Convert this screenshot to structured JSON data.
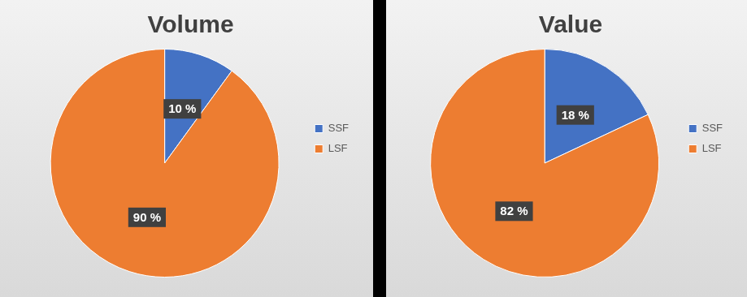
{
  "chart_data": [
    {
      "type": "pie",
      "title": "Volume",
      "categories": [
        "SSF",
        "LSF"
      ],
      "values": [
        10,
        90
      ],
      "value_labels": [
        "10 %",
        "90 %"
      ],
      "colors": [
        "#4472c4",
        "#ed7d31"
      ],
      "data_labels": true,
      "legend": "right"
    },
    {
      "type": "pie",
      "title": "Value",
      "categories": [
        "SSF",
        "LSF"
      ],
      "values": [
        18,
        82
      ],
      "value_labels": [
        "18 %",
        "82 %"
      ],
      "colors": [
        "#4472c4",
        "#ed7d31"
      ],
      "data_labels": true,
      "legend": "right"
    }
  ]
}
